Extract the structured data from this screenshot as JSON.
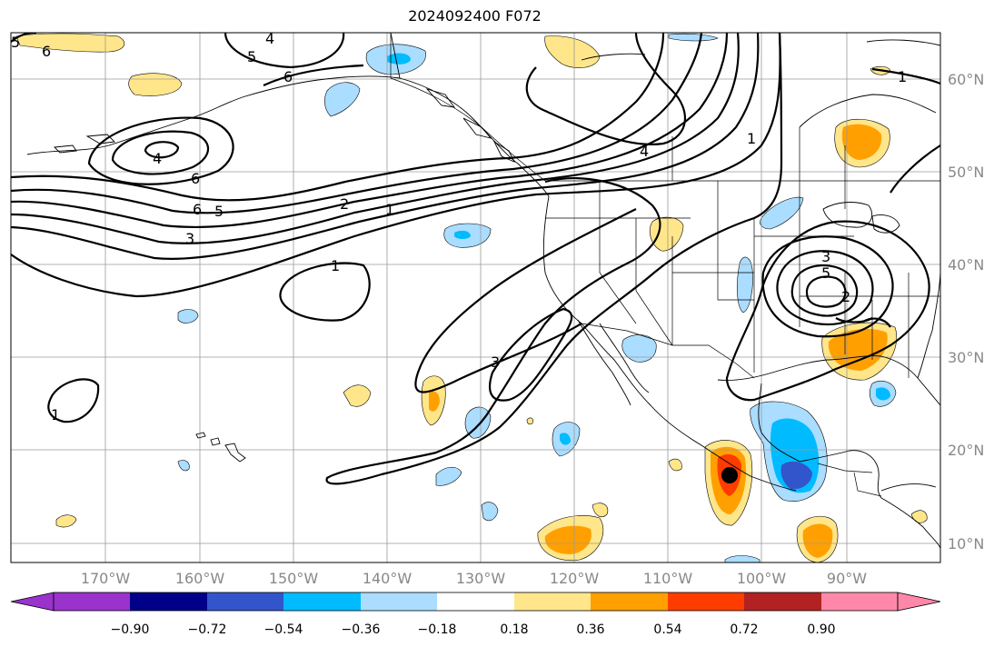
{
  "title": "2024092400 F072",
  "map": {
    "lat_labels": [
      "60°N",
      "50°N",
      "40°N",
      "30°N",
      "20°N",
      "10°N"
    ],
    "lon_labels": [
      "170°W",
      "160°W",
      "150°W",
      "140°W",
      "130°W",
      "120°W",
      "110°W",
      "100°W",
      "90°W"
    ],
    "contour_labels": [
      "6",
      "5",
      "4",
      "5",
      "6",
      "1",
      "4",
      "6",
      "6",
      "5",
      "3",
      "2",
      "1",
      "1",
      "4",
      "1",
      "3",
      "3",
      "5",
      "2",
      "1"
    ],
    "storm_marker": "black-dot"
  },
  "colorbar": {
    "ticks": [
      "−0.90",
      "−0.72",
      "−0.54",
      "−0.36",
      "−0.18",
      "0.18",
      "0.36",
      "0.54",
      "0.72",
      "0.90"
    ],
    "colors": [
      "#9933cc",
      "#000088",
      "#3355cc",
      "#00bbff",
      "#aaddff",
      "#ffffff",
      "#ffe68a",
      "#ffa000",
      "#ff3c00",
      "#b22222",
      "#ff88aa"
    ]
  }
}
